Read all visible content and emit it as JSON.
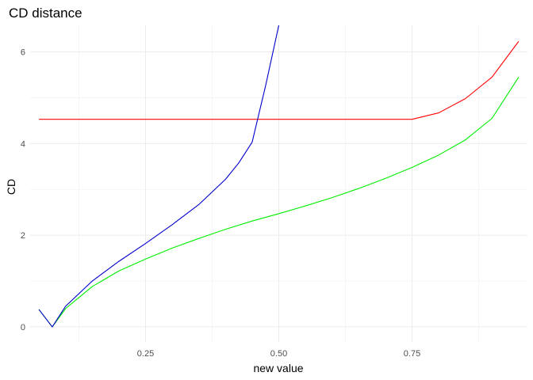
{
  "chart_data": {
    "type": "line",
    "title": "CD distance",
    "xlabel": "new value",
    "ylabel": "CD",
    "xlim": [
      0.0335,
      0.9665
    ],
    "ylim": [
      -0.33,
      6.58
    ],
    "x_ticks": [
      0.25,
      0.5,
      0.75
    ],
    "x_tick_labels": [
      "0.25",
      "0.50",
      "0.75"
    ],
    "x_minor_ticks": [
      0.125,
      0.375,
      0.625,
      0.875
    ],
    "y_ticks": [
      0,
      2,
      4,
      6
    ],
    "y_tick_labels": [
      "0",
      "2",
      "4",
      "6"
    ],
    "y_minor_ticks": [
      1,
      3,
      5
    ],
    "grid": true,
    "legend": "none",
    "series": [
      {
        "color": "#ff0000",
        "x": [
          0.05,
          0.1,
          0.15,
          0.2,
          0.25,
          0.3,
          0.35,
          0.4,
          0.45,
          0.5,
          0.55,
          0.6,
          0.65,
          0.7,
          0.75,
          0.8,
          0.85,
          0.9,
          0.95
        ],
        "y": [
          4.53,
          4.53,
          4.53,
          4.53,
          4.53,
          4.53,
          4.53,
          4.53,
          4.53,
          4.53,
          4.53,
          4.53,
          4.53,
          4.53,
          4.53,
          4.67,
          4.98,
          5.45,
          6.23
        ]
      },
      {
        "color": "#00ee00",
        "x": [
          0.05,
          0.075,
          0.1,
          0.15,
          0.2,
          0.25,
          0.3,
          0.35,
          0.4,
          0.45,
          0.5,
          0.55,
          0.6,
          0.65,
          0.7,
          0.75,
          0.8,
          0.85,
          0.9,
          0.95
        ],
        "y": [
          0.38,
          0.0,
          0.4,
          0.88,
          1.22,
          1.48,
          1.72,
          1.93,
          2.13,
          2.31,
          2.47,
          2.64,
          2.82,
          3.02,
          3.24,
          3.48,
          3.75,
          4.08,
          4.55,
          5.45
        ]
      },
      {
        "color": "#0000cc",
        "x": [
          0.05,
          0.075,
          0.1,
          0.15,
          0.2,
          0.25,
          0.3,
          0.35,
          0.4,
          0.425,
          0.45,
          0.475,
          0.5
        ],
        "y": [
          0.38,
          0.0,
          0.45,
          1.0,
          1.43,
          1.82,
          2.23,
          2.67,
          3.22,
          3.58,
          4.03,
          5.25,
          6.58
        ]
      }
    ]
  }
}
